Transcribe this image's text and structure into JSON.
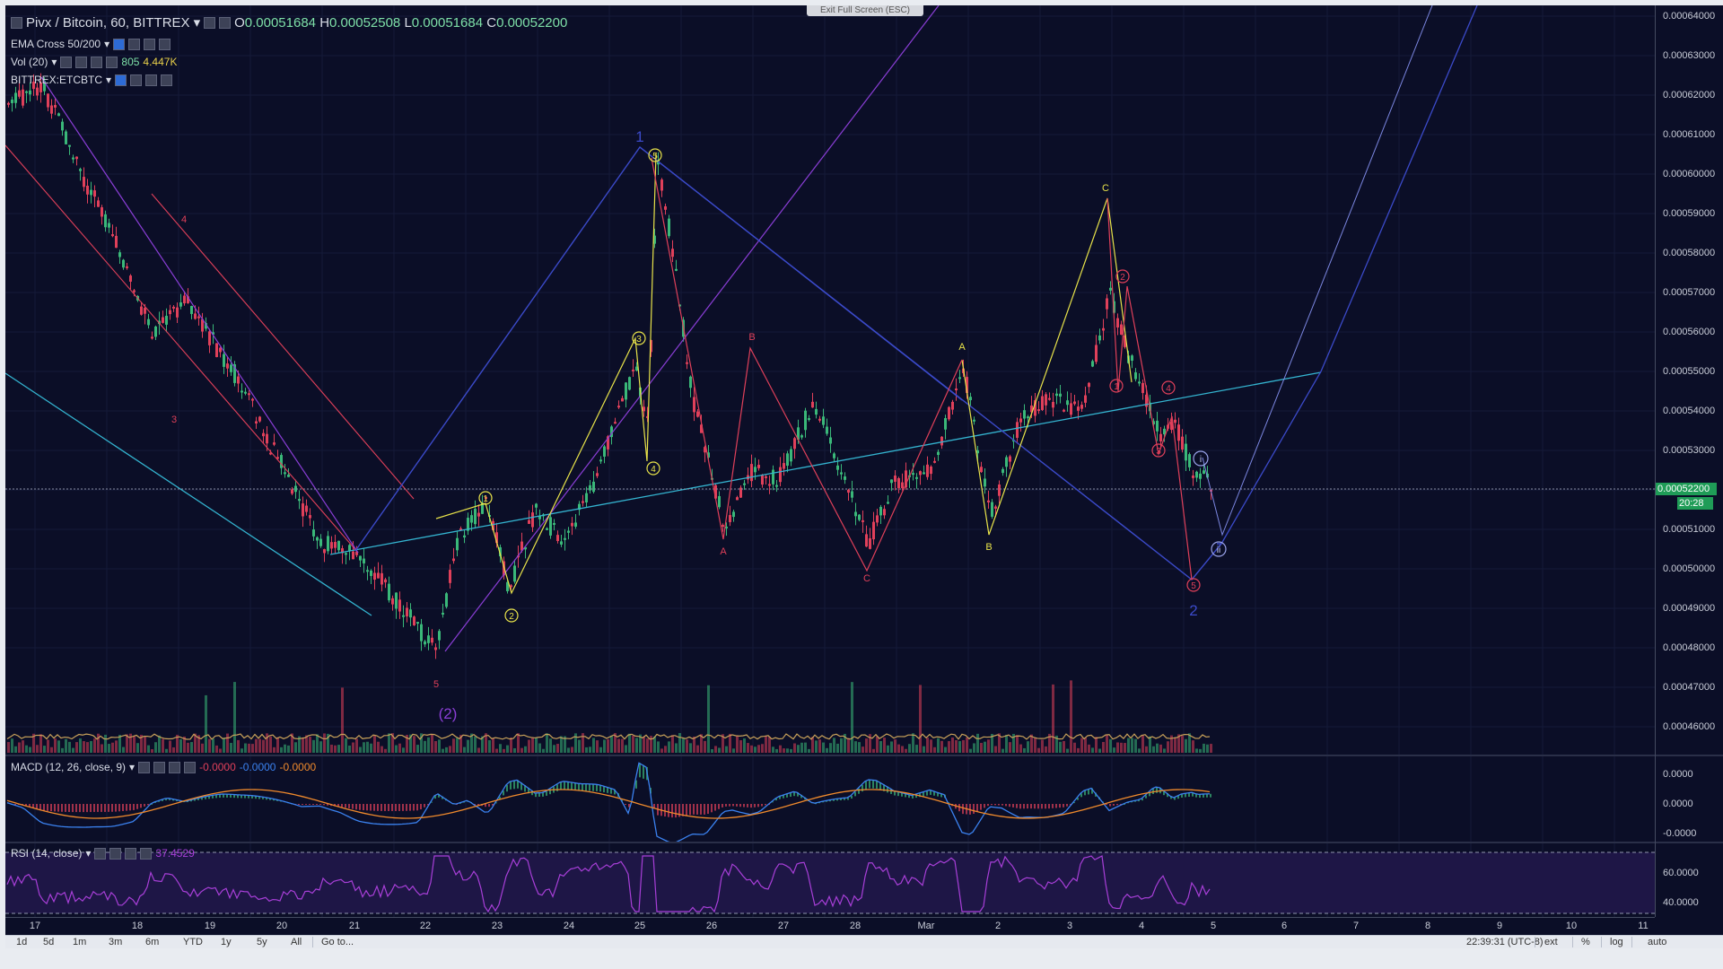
{
  "window": {
    "exit_fullscreen": "Exit Full Screen (ESC)"
  },
  "symbol": {
    "title": "Pivx / Bitcoin, 60, BITTREX",
    "open_label": "O",
    "open": "0.00051684",
    "high_label": "H",
    "high": "0.00052508",
    "low_label": "L",
    "low": "0.00051684",
    "close_label": "C",
    "close": "0.00052200"
  },
  "indicators": {
    "ema": "EMA Cross 50/200",
    "vol": "Vol (20)",
    "vol_value1": "805",
    "vol_value2": "4.447K",
    "compare": "BITTREX:ETCBTC",
    "macd": "MACD (12, 26, close, 9)",
    "macd_v1": "-0.0000",
    "macd_v2": "-0.0000",
    "macd_v3": "-0.0000",
    "rsi": "RSI (14, close)",
    "rsi_value": "37.4529"
  },
  "price_axis": {
    "ticks": [
      "0.00064000",
      "0.00063000",
      "0.00062000",
      "0.00061000",
      "0.00060000",
      "0.00059000",
      "0.00058000",
      "0.00057000",
      "0.00056000",
      "0.00055000",
      "0.00054000",
      "0.00053000",
      "0.00051000",
      "0.00050000",
      "0.00049000",
      "0.00048000",
      "0.00047000",
      "0.00046000"
    ],
    "current_price": "0.00052200",
    "countdown": "20:28"
  },
  "macd_axis": {
    "ticks": [
      "0.0000",
      "0.0000",
      "-0.0000"
    ]
  },
  "rsi_axis": {
    "ticks": [
      "60.0000",
      "40.0000"
    ]
  },
  "time_axis": {
    "labels": [
      "17",
      "18",
      "19",
      "20",
      "21",
      "22",
      "23",
      "24",
      "25",
      "26",
      "27",
      "28",
      "Mar",
      "2",
      "3",
      "4",
      "5",
      "6",
      "7",
      "8",
      "9",
      "10",
      "11"
    ]
  },
  "bottom_bar": {
    "ranges": [
      "1d",
      "5d",
      "1m",
      "3m",
      "6m",
      "YTD",
      "1y",
      "5y",
      "All"
    ],
    "goto": "Go to...",
    "clock": "22:39:31 (UTC-8)",
    "ext": "ext",
    "percent": "%",
    "log": "log",
    "auto": "auto"
  },
  "annotations": {
    "wave_1": "1",
    "wave_2": "2",
    "wave_paren_2": "(2)",
    "fifth_low": "5",
    "red_4": "4",
    "red_3": "3",
    "yellow_circles": [
      "1",
      "2",
      "3",
      "4",
      "5"
    ],
    "red_A": "A",
    "red_B": "B",
    "red_C": "C",
    "yellow_A": "A",
    "yellow_B": "B",
    "yellow_C": "C",
    "red_circles": [
      "1",
      "2",
      "3",
      "4",
      "5"
    ],
    "blue_i": "i",
    "blue_ii": "ii"
  },
  "colors": {
    "background": "#0b0e27",
    "up": "#3ab879",
    "down": "#e0405a",
    "elliott_blue": "#3b4ac9",
    "purple": "#8a3ed6",
    "cyan": "#34b4d0",
    "yellow": "#e8e34a"
  }
}
